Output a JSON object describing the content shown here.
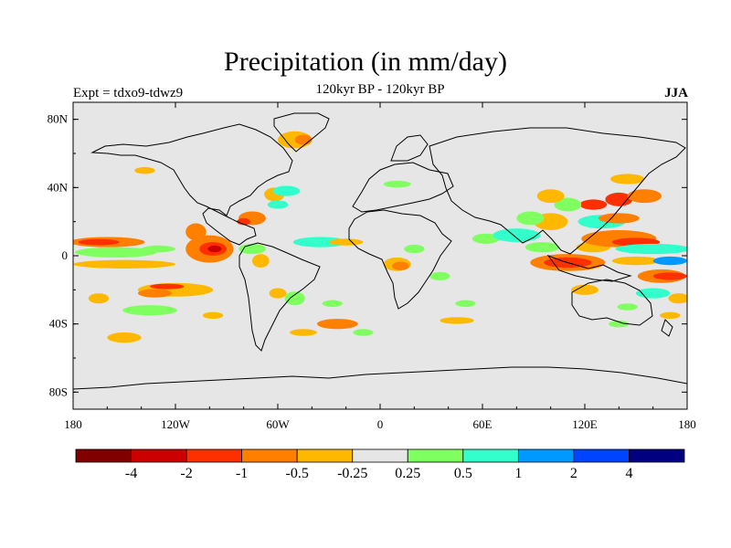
{
  "title": "Precipitation (in mm/day)",
  "subtitle": "120kyr BP - 120kyr BP",
  "left_label": "Expt = tdxo9-tdwz9",
  "right_label": "JJA",
  "colors": {
    "background": "#e6e6e6",
    "coast": "#000000"
  },
  "map": {
    "lon_range": [
      -180,
      180
    ],
    "lat_range": [
      -90,
      90
    ],
    "x_ticks": [
      {
        "value": -180,
        "label": "180"
      },
      {
        "value": -120,
        "label": "120W"
      },
      {
        "value": -60,
        "label": "60W"
      },
      {
        "value": 0,
        "label": "0"
      },
      {
        "value": 60,
        "label": "60E"
      },
      {
        "value": 120,
        "label": "120E"
      },
      {
        "value": 180,
        "label": "180"
      }
    ],
    "y_ticks": [
      {
        "value": 80,
        "label": "80N"
      },
      {
        "value": 40,
        "label": "40N"
      },
      {
        "value": 0,
        "label": "0"
      },
      {
        "value": -40,
        "label": "40S"
      },
      {
        "value": -80,
        "label": "80S"
      }
    ],
    "anomalies": [
      {
        "lon": -160,
        "lat": 8,
        "rx": 22,
        "ry": 3,
        "color": "#ff7f00"
      },
      {
        "lon": -165,
        "lat": 8,
        "rx": 12,
        "ry": 1.8,
        "color": "#ff3000"
      },
      {
        "lon": -155,
        "lat": 2,
        "rx": 24,
        "ry": 3,
        "color": "#80ff60"
      },
      {
        "lon": -150,
        "lat": -5,
        "rx": 30,
        "ry": 2.5,
        "color": "#ffb800"
      },
      {
        "lon": -130,
        "lat": 4,
        "rx": 10,
        "ry": 2,
        "color": "#80ff60"
      },
      {
        "lon": -100,
        "lat": 4,
        "rx": 14,
        "ry": 8,
        "color": "#ff7f00"
      },
      {
        "lon": -98,
        "lat": 4,
        "rx": 8,
        "ry": 4,
        "color": "#ff3000"
      },
      {
        "lon": -97,
        "lat": 4,
        "rx": 4,
        "ry": 2,
        "color": "#cc0000"
      },
      {
        "lon": -108,
        "lat": 14,
        "rx": 6,
        "ry": 5,
        "color": "#ff7f00"
      },
      {
        "lon": -75,
        "lat": 4,
        "rx": 8,
        "ry": 3,
        "color": "#80ff60"
      },
      {
        "lon": -70,
        "lat": -3,
        "rx": 5,
        "ry": 4,
        "color": "#ffb800"
      },
      {
        "lon": -120,
        "lat": -20,
        "rx": 22,
        "ry": 4,
        "color": "#ffb800"
      },
      {
        "lon": -132,
        "lat": -22,
        "rx": 10,
        "ry": 2.5,
        "color": "#ff7f00"
      },
      {
        "lon": -125,
        "lat": -18,
        "rx": 10,
        "ry": 1.6,
        "color": "#ff3000"
      },
      {
        "lon": -135,
        "lat": -32,
        "rx": 16,
        "ry": 3,
        "color": "#80ff60"
      },
      {
        "lon": -165,
        "lat": -25,
        "rx": 6,
        "ry": 3,
        "color": "#ffb800"
      },
      {
        "lon": -150,
        "lat": -48,
        "rx": 10,
        "ry": 3,
        "color": "#ffb800"
      },
      {
        "lon": -75,
        "lat": 22,
        "rx": 8,
        "ry": 4,
        "color": "#ff7f00"
      },
      {
        "lon": -80,
        "lat": 20,
        "rx": 4,
        "ry": 2,
        "color": "#ff3000"
      },
      {
        "lon": -62,
        "lat": 36,
        "rx": 6,
        "ry": 4,
        "color": "#ffb800"
      },
      {
        "lon": -55,
        "lat": 38,
        "rx": 8,
        "ry": 3,
        "color": "#33ffcc"
      },
      {
        "lon": -60,
        "lat": 30,
        "rx": 6,
        "ry": 2.5,
        "color": "#33ffcc"
      },
      {
        "lon": -50,
        "lat": 68,
        "rx": 10,
        "ry": 5,
        "color": "#ffb800"
      },
      {
        "lon": -45,
        "lat": 68,
        "rx": 5,
        "ry": 3,
        "color": "#ff7f00"
      },
      {
        "lon": -138,
        "lat": 50,
        "rx": 6,
        "ry": 2,
        "color": "#ffb800"
      },
      {
        "lon": -35,
        "lat": 8,
        "rx": 16,
        "ry": 3,
        "color": "#33ffcc"
      },
      {
        "lon": -20,
        "lat": 8,
        "rx": 10,
        "ry": 2,
        "color": "#ffb800"
      },
      {
        "lon": -60,
        "lat": -22,
        "rx": 5,
        "ry": 3,
        "color": "#ffb800"
      },
      {
        "lon": -50,
        "lat": -25,
        "rx": 6,
        "ry": 4,
        "color": "#80ff60"
      },
      {
        "lon": -28,
        "lat": -28,
        "rx": 6,
        "ry": 2,
        "color": "#80ff60"
      },
      {
        "lon": -25,
        "lat": -40,
        "rx": 12,
        "ry": 3,
        "color": "#ff7f00"
      },
      {
        "lon": -45,
        "lat": -45,
        "rx": 8,
        "ry": 2,
        "color": "#ffb800"
      },
      {
        "lon": -10,
        "lat": -45,
        "rx": 6,
        "ry": 2,
        "color": "#80ff60"
      },
      {
        "lon": 10,
        "lat": -5,
        "rx": 8,
        "ry": 4,
        "color": "#ffb800"
      },
      {
        "lon": 12,
        "lat": -6,
        "rx": 5,
        "ry": 2.5,
        "color": "#ff7f00"
      },
      {
        "lon": 20,
        "lat": 4,
        "rx": 6,
        "ry": 2.5,
        "color": "#80ff60"
      },
      {
        "lon": 35,
        "lat": -12,
        "rx": 6,
        "ry": 2.5,
        "color": "#80ff60"
      },
      {
        "lon": 50,
        "lat": -28,
        "rx": 6,
        "ry": 2,
        "color": "#80ff60"
      },
      {
        "lon": 45,
        "lat": -38,
        "rx": 10,
        "ry": 2,
        "color": "#ffb800"
      },
      {
        "lon": 10,
        "lat": 42,
        "rx": 8,
        "ry": 2,
        "color": "#80ff60"
      },
      {
        "lon": 62,
        "lat": 10,
        "rx": 8,
        "ry": 3,
        "color": "#80ff60"
      },
      {
        "lon": 80,
        "lat": 12,
        "rx": 14,
        "ry": 4,
        "color": "#33ffcc"
      },
      {
        "lon": 95,
        "lat": 5,
        "rx": 10,
        "ry": 3,
        "color": "#80ff60"
      },
      {
        "lon": 100,
        "lat": 20,
        "rx": 10,
        "ry": 5,
        "color": "#ffb800"
      },
      {
        "lon": 88,
        "lat": 22,
        "rx": 8,
        "ry": 4,
        "color": "#80ff60"
      },
      {
        "lon": 110,
        "lat": -4,
        "rx": 22,
        "ry": 5,
        "color": "#ff7f00"
      },
      {
        "lon": 110,
        "lat": -4,
        "rx": 14,
        "ry": 3,
        "color": "#ff3000"
      },
      {
        "lon": 125,
        "lat": 5,
        "rx": 10,
        "ry": 3,
        "color": "#ffb800"
      },
      {
        "lon": 140,
        "lat": 10,
        "rx": 22,
        "ry": 5,
        "color": "#ff7f00"
      },
      {
        "lon": 150,
        "lat": 8,
        "rx": 14,
        "ry": 2.5,
        "color": "#ff3000"
      },
      {
        "lon": 160,
        "lat": 4,
        "rx": 22,
        "ry": 3,
        "color": "#33ffcc"
      },
      {
        "lon": 130,
        "lat": 20,
        "rx": 14,
        "ry": 4,
        "color": "#33ffcc"
      },
      {
        "lon": 140,
        "lat": 22,
        "rx": 12,
        "ry": 3,
        "color": "#ff7f00"
      },
      {
        "lon": 125,
        "lat": 30,
        "rx": 8,
        "ry": 3,
        "color": "#ff3000"
      },
      {
        "lon": 140,
        "lat": 33,
        "rx": 8,
        "ry": 4,
        "color": "#ff3000"
      },
      {
        "lon": 155,
        "lat": 35,
        "rx": 10,
        "ry": 4,
        "color": "#ff7f00"
      },
      {
        "lon": 110,
        "lat": 30,
        "rx": 8,
        "ry": 4,
        "color": "#80ff60"
      },
      {
        "lon": 100,
        "lat": 35,
        "rx": 8,
        "ry": 4,
        "color": "#ffb800"
      },
      {
        "lon": 145,
        "lat": 45,
        "rx": 10,
        "ry": 3,
        "color": "#ffb800"
      },
      {
        "lon": 150,
        "lat": -3,
        "rx": 14,
        "ry": 2.5,
        "color": "#ffb800"
      },
      {
        "lon": 165,
        "lat": -12,
        "rx": 14,
        "ry": 4,
        "color": "#ff7f00"
      },
      {
        "lon": 170,
        "lat": -12,
        "rx": 10,
        "ry": 2.2,
        "color": "#ff3000"
      },
      {
        "lon": 170,
        "lat": -3,
        "rx": 10,
        "ry": 2.5,
        "color": "#0099ff"
      },
      {
        "lon": 160,
        "lat": -22,
        "rx": 10,
        "ry": 3,
        "color": "#33ffcc"
      },
      {
        "lon": 120,
        "lat": -20,
        "rx": 8,
        "ry": 3,
        "color": "#ffb800"
      },
      {
        "lon": 145,
        "lat": -30,
        "rx": 6,
        "ry": 2,
        "color": "#80ff60"
      },
      {
        "lon": 175,
        "lat": -25,
        "rx": 6,
        "ry": 3,
        "color": "#ffb800"
      },
      {
        "lon": 170,
        "lat": -35,
        "rx": 6,
        "ry": 2,
        "color": "#ffb800"
      },
      {
        "lon": 140,
        "lat": -40,
        "rx": 6,
        "ry": 2,
        "color": "#80ff60"
      },
      {
        "lon": -98,
        "lat": -35,
        "rx": 6,
        "ry": 2,
        "color": "#ffb800"
      }
    ]
  },
  "colorbar": {
    "colors": [
      "#800000",
      "#cc0000",
      "#ff3000",
      "#ff7f00",
      "#ffb800",
      "#e6e6e6",
      "#80ff60",
      "#33ffcc",
      "#0099ff",
      "#0044ff",
      "#000080"
    ],
    "labels": [
      "-4",
      "-2",
      "-1",
      "-0.5",
      "-0.25",
      "0.25",
      "0.5",
      "1",
      "2",
      "4"
    ]
  }
}
